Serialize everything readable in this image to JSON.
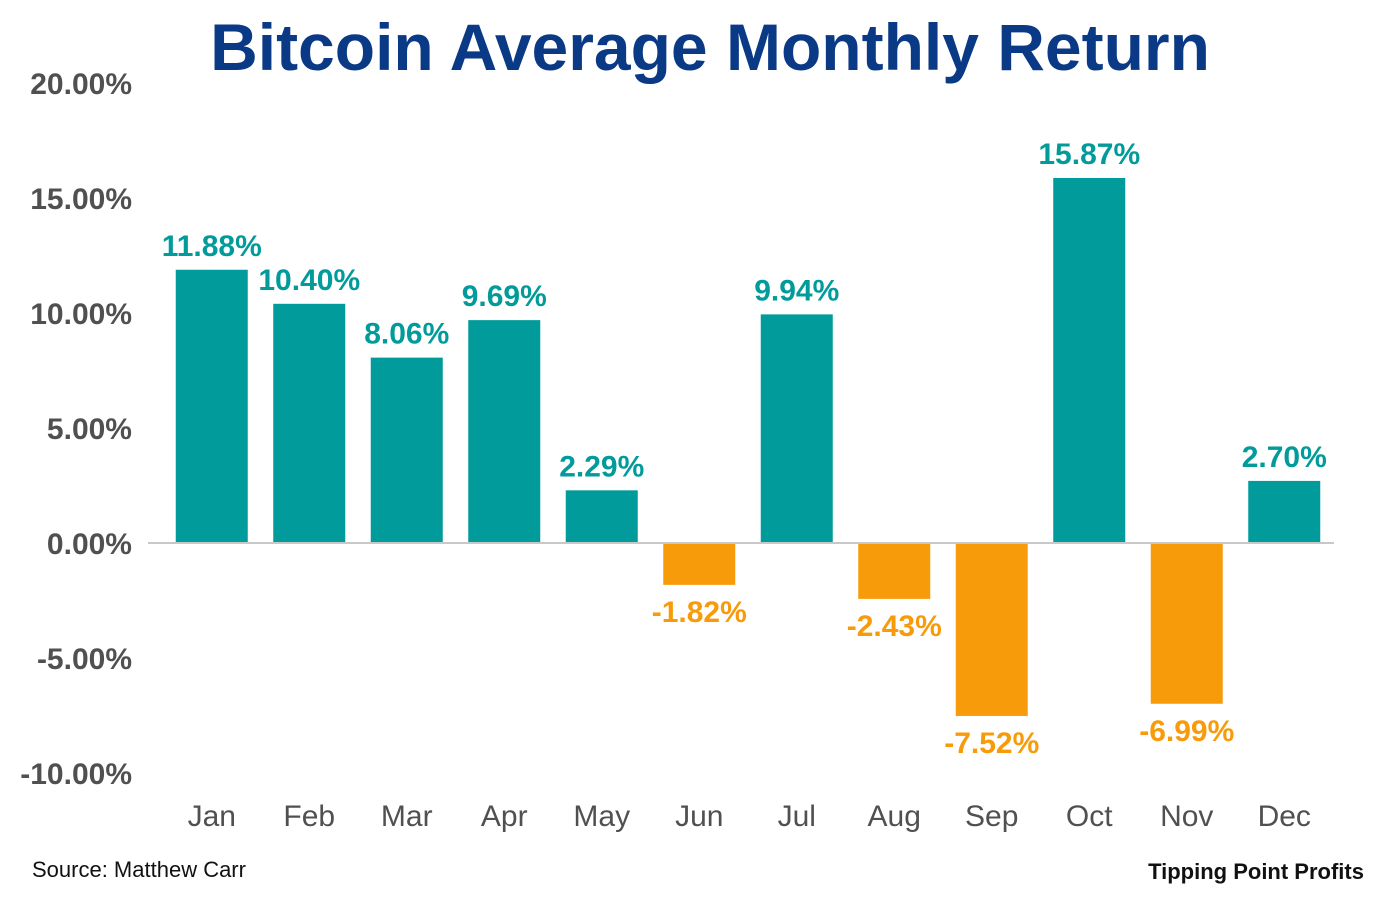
{
  "chart_data": {
    "type": "bar",
    "title": "Bitcoin Average Monthly Return",
    "categories": [
      "Jan",
      "Feb",
      "Mar",
      "Apr",
      "May",
      "Jun",
      "Jul",
      "Aug",
      "Sep",
      "Oct",
      "Nov",
      "Dec"
    ],
    "values": [
      11.88,
      10.4,
      8.06,
      9.69,
      2.29,
      -1.82,
      9.94,
      -2.43,
      -7.52,
      15.87,
      -6.99,
      2.7
    ],
    "data_labels": [
      "11.88%",
      "10.40%",
      "8.06%",
      "9.69%",
      "2.29%",
      "-1.82%",
      "9.94%",
      "-2.43%",
      "-7.52%",
      "15.87%",
      "-6.99%",
      "2.70%"
    ],
    "y_ticks": [
      20,
      15,
      10,
      5,
      0,
      -5,
      -10
    ],
    "y_tick_labels": [
      "20.00%",
      "15.00%",
      "10.00%",
      "5.00%",
      "0.00%",
      "-5.00%",
      "-10.00%"
    ],
    "ylim": [
      -10,
      20
    ],
    "xlabel": "",
    "ylabel": "",
    "grid": false,
    "colors": {
      "positive": "#009b9a",
      "negative": "#f89b0b",
      "title": "#0a3a86",
      "axis": "#c8c8c8",
      "tick_text": "#505050"
    }
  },
  "footer": {
    "source": "Source: Matthew Carr",
    "brand": "Tipping Point Profits"
  }
}
